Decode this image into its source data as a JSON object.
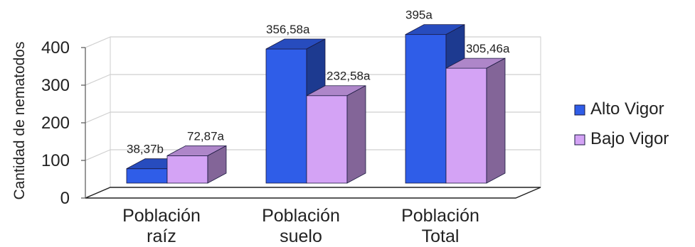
{
  "chart_data": {
    "type": "bar",
    "ylabel": "Cantidad de nematodos",
    "xlabel": "",
    "ylim": [
      0,
      400
    ],
    "yticks": [
      "0",
      "100",
      "200",
      "300",
      "400"
    ],
    "categories": [
      {
        "line1": "Población",
        "line2": "raíz"
      },
      {
        "line1": "Población",
        "line2": "suelo"
      },
      {
        "line1": "Población",
        "line2": "Total"
      }
    ],
    "series": [
      {
        "name": "Alto Vigor",
        "color": "#2f5de8",
        "values": [
          38.37,
          356.58,
          395
        ],
        "labels": [
          "38,37b",
          "356,58a",
          "395a"
        ]
      },
      {
        "name": "Bajo Vigor",
        "color": "#d4a3f5",
        "values": [
          72.87,
          232.58,
          305.46
        ],
        "labels": [
          "72,87a",
          "232,58a",
          "305,46a"
        ]
      }
    ],
    "grid": true,
    "legend_position": "right",
    "style": "3d"
  }
}
